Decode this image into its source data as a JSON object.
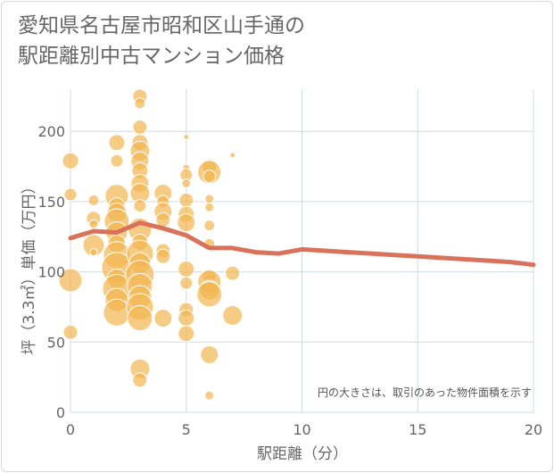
{
  "title": {
    "line1": "愛知県名古屋市昭和区山手通の",
    "line2": "駅距離別中古マンション価格"
  },
  "chart_data": {
    "type": "scatter",
    "title": "愛知県名古屋市昭和区山手通の駅距離別中古マンション価格",
    "xlabel": "駅距離（分）",
    "ylabel": "坪（3.3㎡）単価（万円）",
    "xlim": [
      0,
      20
    ],
    "ylim": [
      0,
      230
    ],
    "x_ticks": [
      "0",
      "5",
      "10",
      "15",
      "20"
    ],
    "y_ticks": [
      "0",
      "50",
      "100",
      "150",
      "200"
    ],
    "grid": true,
    "annotation": "円の大きさは、取引のあった物件面積を示す",
    "colors": {
      "bubble": "#f2b54f",
      "line": "#d9725a",
      "grid": "#cfdbe6"
    },
    "bubbles": [
      {
        "x": 0,
        "y": 179,
        "r": 9
      },
      {
        "x": 0,
        "y": 155,
        "r": 7
      },
      {
        "x": 0,
        "y": 94,
        "r": 13
      },
      {
        "x": 0,
        "y": 57,
        "r": 8
      },
      {
        "x": 1,
        "y": 151,
        "r": 6
      },
      {
        "x": 1,
        "y": 138,
        "r": 8
      },
      {
        "x": 1,
        "y": 134,
        "r": 5
      },
      {
        "x": 1,
        "y": 119,
        "r": 12
      },
      {
        "x": 1,
        "y": 114,
        "r": 4
      },
      {
        "x": 2,
        "y": 192,
        "r": 9
      },
      {
        "x": 2,
        "y": 179,
        "r": 7
      },
      {
        "x": 2,
        "y": 154,
        "r": 13
      },
      {
        "x": 2,
        "y": 147,
        "r": 9
      },
      {
        "x": 2,
        "y": 142,
        "r": 11
      },
      {
        "x": 2,
        "y": 136,
        "r": 14
      },
      {
        "x": 2,
        "y": 128,
        "r": 12
      },
      {
        "x": 2,
        "y": 120,
        "r": 10
      },
      {
        "x": 2,
        "y": 112,
        "r": 15
      },
      {
        "x": 2,
        "y": 103,
        "r": 17
      },
      {
        "x": 2,
        "y": 95,
        "r": 11
      },
      {
        "x": 2,
        "y": 88,
        "r": 16
      },
      {
        "x": 2,
        "y": 80,
        "r": 13
      },
      {
        "x": 2,
        "y": 71,
        "r": 15
      },
      {
        "x": 3,
        "y": 225,
        "r": 8
      },
      {
        "x": 3,
        "y": 220,
        "r": 6
      },
      {
        "x": 3,
        "y": 203,
        "r": 8
      },
      {
        "x": 3,
        "y": 192,
        "r": 9
      },
      {
        "x": 3,
        "y": 186,
        "r": 11
      },
      {
        "x": 3,
        "y": 179,
        "r": 10
      },
      {
        "x": 3,
        "y": 172,
        "r": 9
      },
      {
        "x": 3,
        "y": 163,
        "r": 10
      },
      {
        "x": 3,
        "y": 156,
        "r": 11
      },
      {
        "x": 3,
        "y": 147,
        "r": 7
      },
      {
        "x": 3,
        "y": 130,
        "r": 13
      },
      {
        "x": 3,
        "y": 121,
        "r": 9
      },
      {
        "x": 3,
        "y": 113,
        "r": 15
      },
      {
        "x": 3,
        "y": 106,
        "r": 12
      },
      {
        "x": 3,
        "y": 98,
        "r": 16
      },
      {
        "x": 3,
        "y": 90,
        "r": 14
      },
      {
        "x": 3,
        "y": 82,
        "r": 13
      },
      {
        "x": 3,
        "y": 75,
        "r": 15
      },
      {
        "x": 3,
        "y": 67,
        "r": 14
      },
      {
        "x": 3,
        "y": 31,
        "r": 11
      },
      {
        "x": 3,
        "y": 23,
        "r": 8
      },
      {
        "x": 4,
        "y": 156,
        "r": 10
      },
      {
        "x": 4,
        "y": 150,
        "r": 7
      },
      {
        "x": 4,
        "y": 143,
        "r": 10
      },
      {
        "x": 4,
        "y": 137,
        "r": 8
      },
      {
        "x": 4,
        "y": 115,
        "r": 8
      },
      {
        "x": 4,
        "y": 111,
        "r": 8
      },
      {
        "x": 4,
        "y": 67,
        "r": 10
      },
      {
        "x": 5,
        "y": 196,
        "r": 3
      },
      {
        "x": 5,
        "y": 174,
        "r": 4
      },
      {
        "x": 5,
        "y": 169,
        "r": 7
      },
      {
        "x": 5,
        "y": 163,
        "r": 5
      },
      {
        "x": 5,
        "y": 151,
        "r": 8
      },
      {
        "x": 5,
        "y": 141,
        "r": 9
      },
      {
        "x": 5,
        "y": 135,
        "r": 10
      },
      {
        "x": 5,
        "y": 102,
        "r": 9
      },
      {
        "x": 5,
        "y": 92,
        "r": 7
      },
      {
        "x": 5,
        "y": 73,
        "r": 8
      },
      {
        "x": 5,
        "y": 67,
        "r": 9
      },
      {
        "x": 5,
        "y": 56,
        "r": 9
      },
      {
        "x": 6,
        "y": 175,
        "r": 8
      },
      {
        "x": 6,
        "y": 171,
        "r": 13
      },
      {
        "x": 6,
        "y": 168,
        "r": 7
      },
      {
        "x": 6,
        "y": 152,
        "r": 5
      },
      {
        "x": 6,
        "y": 146,
        "r": 5
      },
      {
        "x": 6,
        "y": 133,
        "r": 6
      },
      {
        "x": 6,
        "y": 120,
        "r": 6
      },
      {
        "x": 6,
        "y": 97,
        "r": 8
      },
      {
        "x": 6,
        "y": 93,
        "r": 13
      },
      {
        "x": 6,
        "y": 87,
        "r": 11
      },
      {
        "x": 6,
        "y": 84,
        "r": 14
      },
      {
        "x": 6,
        "y": 41,
        "r": 10
      },
      {
        "x": 6,
        "y": 12,
        "r": 5
      },
      {
        "x": 7,
        "y": 183,
        "r": 3
      },
      {
        "x": 7,
        "y": 99,
        "r": 8
      },
      {
        "x": 7,
        "y": 69,
        "r": 11
      }
    ],
    "series": [
      {
        "x": [
          0,
          1,
          2,
          3,
          4,
          5,
          6,
          7,
          8,
          9,
          10,
          11,
          12,
          13,
          14,
          15,
          16,
          17,
          18,
          19,
          20
        ],
        "values": [
          124,
          129,
          128,
          135,
          131,
          126,
          117,
          117,
          114,
          113,
          116,
          115,
          114,
          113,
          112,
          111,
          110,
          109,
          108,
          107,
          105
        ]
      }
    ]
  }
}
